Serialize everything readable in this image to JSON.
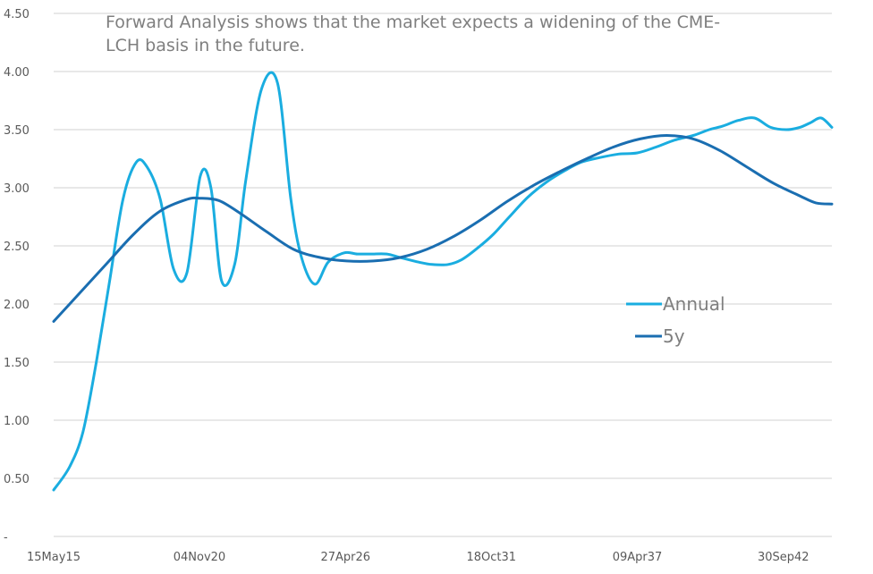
{
  "chart_data": {
    "type": "line",
    "title_lines": [
      "Forward Analysis shows that the market expects a widening of the CME-",
      "LCH basis in the future."
    ],
    "xlabel": "",
    "ylabel": "",
    "x_tick_labels": [
      "15May15",
      "04Nov20",
      "27Apr26",
      "18Oct31",
      "09Apr37",
      "30Sep42"
    ],
    "x_tick_positions": [
      0,
      5.47,
      10.95,
      16.42,
      21.9,
      27.38
    ],
    "xlim": [
      0,
      29.2
    ],
    "y_tick_labels": [
      "-",
      "0.50",
      "1.00",
      "1.50",
      "2.00",
      "2.50",
      "3.00",
      "3.50",
      "4.00",
      "4.50"
    ],
    "y_tick_values": [
      0,
      0.5,
      1.0,
      1.5,
      2.0,
      2.5,
      3.0,
      3.5,
      4.0,
      4.5
    ],
    "ylim": [
      0,
      4.5
    ],
    "grid": "horizontal",
    "legend_position": "right",
    "series": [
      {
        "name": "Annual",
        "color": "#1aade0",
        "x": [
          0,
          0.6,
          1.1,
          1.6,
          2.1,
          2.6,
          3.1,
          3.5,
          4.0,
          4.5,
          5.0,
          5.5,
          5.9,
          6.3,
          6.8,
          7.2,
          7.8,
          8.4,
          8.9,
          9.3,
          9.8,
          10.3,
          10.9,
          11.4,
          11.9,
          12.5,
          13.0,
          13.7,
          14.2,
          14.8,
          15.3,
          15.9,
          16.5,
          17.1,
          17.8,
          18.5,
          19.2,
          19.8,
          20.5,
          21.2,
          21.9,
          22.6,
          23.3,
          24.0,
          24.6,
          25.1,
          25.7,
          26.3,
          26.9,
          27.5,
          28.0,
          28.4,
          28.8,
          29.2
        ],
        "values": [
          0.4,
          0.6,
          0.9,
          1.5,
          2.2,
          2.9,
          3.22,
          3.18,
          2.9,
          2.3,
          2.27,
          3.1,
          3.0,
          2.2,
          2.35,
          3.05,
          3.85,
          3.9,
          2.9,
          2.4,
          2.17,
          2.36,
          2.44,
          2.43,
          2.43,
          2.43,
          2.4,
          2.36,
          2.34,
          2.34,
          2.38,
          2.48,
          2.6,
          2.75,
          2.92,
          3.05,
          3.15,
          3.22,
          3.26,
          3.29,
          3.3,
          3.35,
          3.41,
          3.45,
          3.5,
          3.53,
          3.58,
          3.6,
          3.52,
          3.5,
          3.52,
          3.56,
          3.6,
          3.52
        ]
      },
      {
        "name": "5y",
        "color": "#1a6eb1",
        "x": [
          0,
          1.0,
          2.0,
          3.0,
          4.0,
          5.0,
          5.47,
          6.2,
          7.0,
          8.0,
          9.0,
          10.0,
          11.0,
          12.0,
          13.0,
          14.0,
          15.0,
          16.0,
          17.0,
          18.0,
          19.0,
          20.0,
          21.0,
          22.0,
          23.0,
          24.0,
          25.0,
          26.0,
          27.0,
          28.0,
          28.6,
          29.2
        ],
        "values": [
          1.85,
          2.1,
          2.35,
          2.6,
          2.8,
          2.9,
          2.91,
          2.89,
          2.78,
          2.62,
          2.47,
          2.4,
          2.37,
          2.37,
          2.4,
          2.47,
          2.58,
          2.72,
          2.88,
          3.02,
          3.14,
          3.25,
          3.35,
          3.42,
          3.45,
          3.42,
          3.32,
          3.18,
          3.04,
          2.93,
          2.87,
          2.86
        ]
      }
    ]
  }
}
